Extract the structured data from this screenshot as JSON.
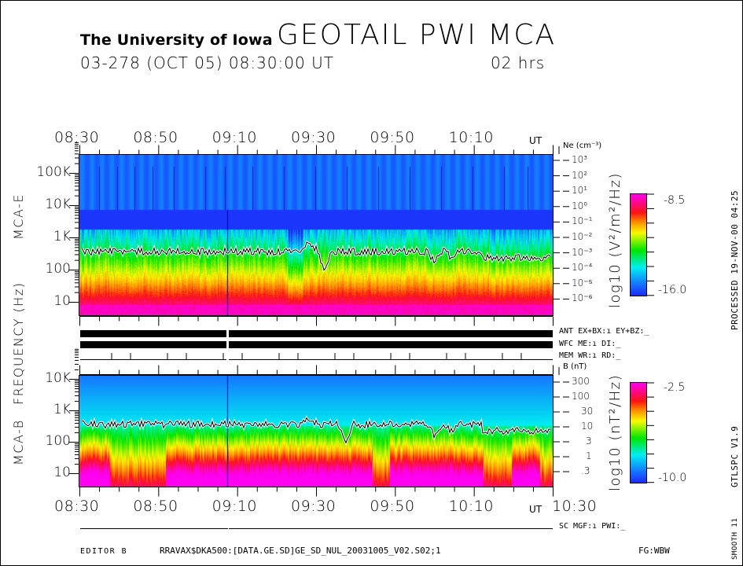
{
  "header": {
    "institution": "The University of Iowa",
    "title": "GEOTAIL  PWI  MCA",
    "date_line": "03-278 (OCT 05) 08:30:00 UT",
    "duration": "02 hrs"
  },
  "time_axis": {
    "top_labels": [
      "08:30",
      "08:50",
      "09:10",
      "09:30",
      "09:50",
      "10:10"
    ],
    "top_unit": "UT",
    "bottom_labels": [
      "08:30",
      "08:50",
      "09:10",
      "09:30",
      "09:50",
      "10:10"
    ],
    "bottom_unit": "UT",
    "bottom_end_label": "10:30"
  },
  "axis_titles": {
    "frequency": "FREQUENCY  (Hz)",
    "mca_e": "MCA-E",
    "mca_b": "MCA-B"
  },
  "chart_data": [
    {
      "type": "heatmap",
      "name": "MCA-E",
      "x_range": [
        "08:30",
        "10:30"
      ],
      "y_scale": "log",
      "ylabel": "Frequency (Hz)",
      "yticks": [
        "10",
        "100",
        "1K",
        "10K",
        "100K"
      ],
      "right_axis": {
        "label": "Ne (cm⁻³)",
        "ticks": [
          "10³",
          "10²",
          "10¹",
          "10⁰",
          "10⁻¹",
          "10⁻²",
          "10⁻³",
          "10⁻⁴",
          "10⁻⁵",
          "10⁻⁶"
        ]
      },
      "colorbar": {
        "label": "log10 (V²/m²/Hz)",
        "max": "-8.5",
        "min": "-16.0"
      },
      "overlay_line_level_hz_approx": 300
    },
    {
      "type": "heatmap",
      "name": "MCA-B",
      "x_range": [
        "08:30",
        "10:30"
      ],
      "y_scale": "log",
      "ylabel": "Frequency (Hz)",
      "yticks": [
        "10",
        "100",
        "1K",
        "10K"
      ],
      "right_axis": {
        "label": "B (nT)",
        "ticks": [
          "300",
          "100",
          "30",
          "10",
          "3",
          "1",
          ".3"
        ]
      },
      "colorbar": {
        "label": "log10 (nT²/Hz)",
        "max": "-2.5",
        "min": "-10.0"
      },
      "overlay_line_level_hz_approx": 300
    }
  ],
  "status": {
    "ant": "ANT EX+BX:ı  EY+BZ:_",
    "wfc": "WFC ME:ı     DI:_",
    "mem": "MEM WR:ı     RD:_",
    "sc": "SC MGF:ı   PWI:_"
  },
  "footer": {
    "editor": "EDITOR B",
    "file": "RRAVAX$DKA500:[DATA.GE.SD]GE_SD_NUL_20031005_V02.S02;1",
    "fg": "FG:WBW"
  },
  "side_text": {
    "processed": "PROCESSED 19-NOV-00   04:25",
    "version": "GTLSPC   V1.9",
    "smooth": "SMOOTH 11"
  }
}
